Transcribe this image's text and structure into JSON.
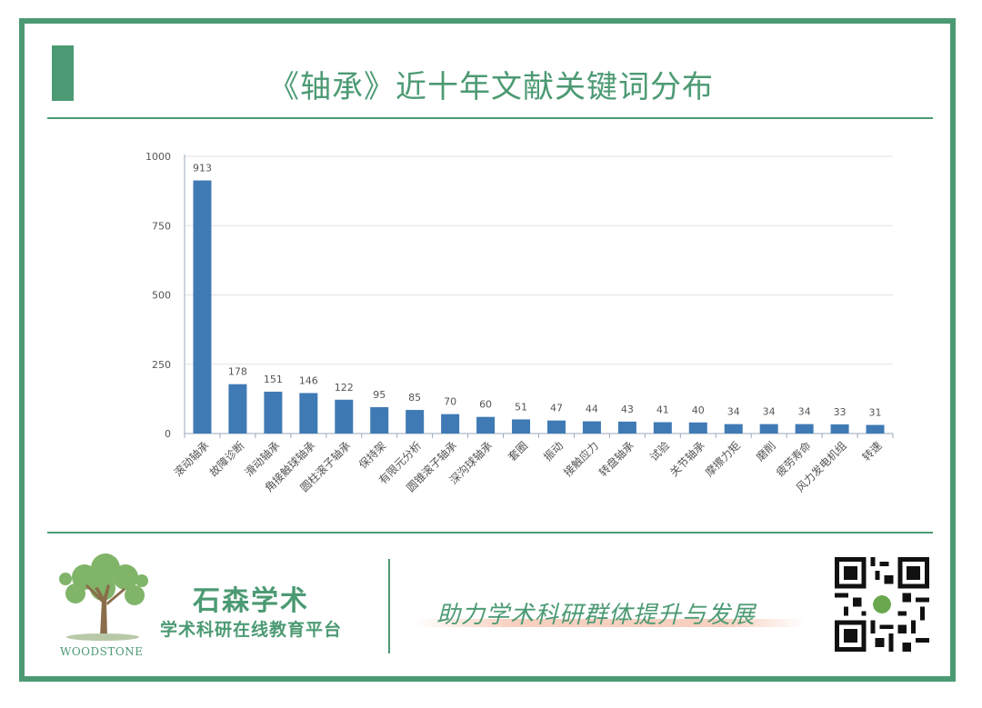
{
  "page": {
    "title": "《轴承》近十年文献关键词分布",
    "brand_cn": "石森学术",
    "brand_sub": "学术科研在线教育平台",
    "brand_en": "WOODSTONE",
    "slogan": "助力学术科研群体提升与发展",
    "accent_color": "#4c9a73",
    "bar_color": "#3f7ab5"
  },
  "chart_data": {
    "type": "bar",
    "categories": [
      "滚动轴承",
      "故障诊断",
      "滑动轴承",
      "角接触球轴承",
      "圆柱滚子轴承",
      "保持架",
      "有限元分析",
      "圆锥滚子轴承",
      "深沟球轴承",
      "套圈",
      "振动",
      "接触应力",
      "转盘轴承",
      "试验",
      "关节轴承",
      "摩擦力矩",
      "磨削",
      "疲劳寿命",
      "风力发电机组",
      "转速"
    ],
    "values": [
      913,
      178,
      151,
      146,
      122,
      95,
      85,
      70,
      60,
      51,
      47,
      44,
      43,
      41,
      40,
      34,
      34,
      34,
      33,
      31
    ],
    "yticks": [
      0,
      250,
      500,
      750,
      1000
    ],
    "ylim": [
      0,
      1000
    ],
    "grid": true,
    "legend": "none",
    "title": "",
    "xlabel": "",
    "ylabel": ""
  }
}
